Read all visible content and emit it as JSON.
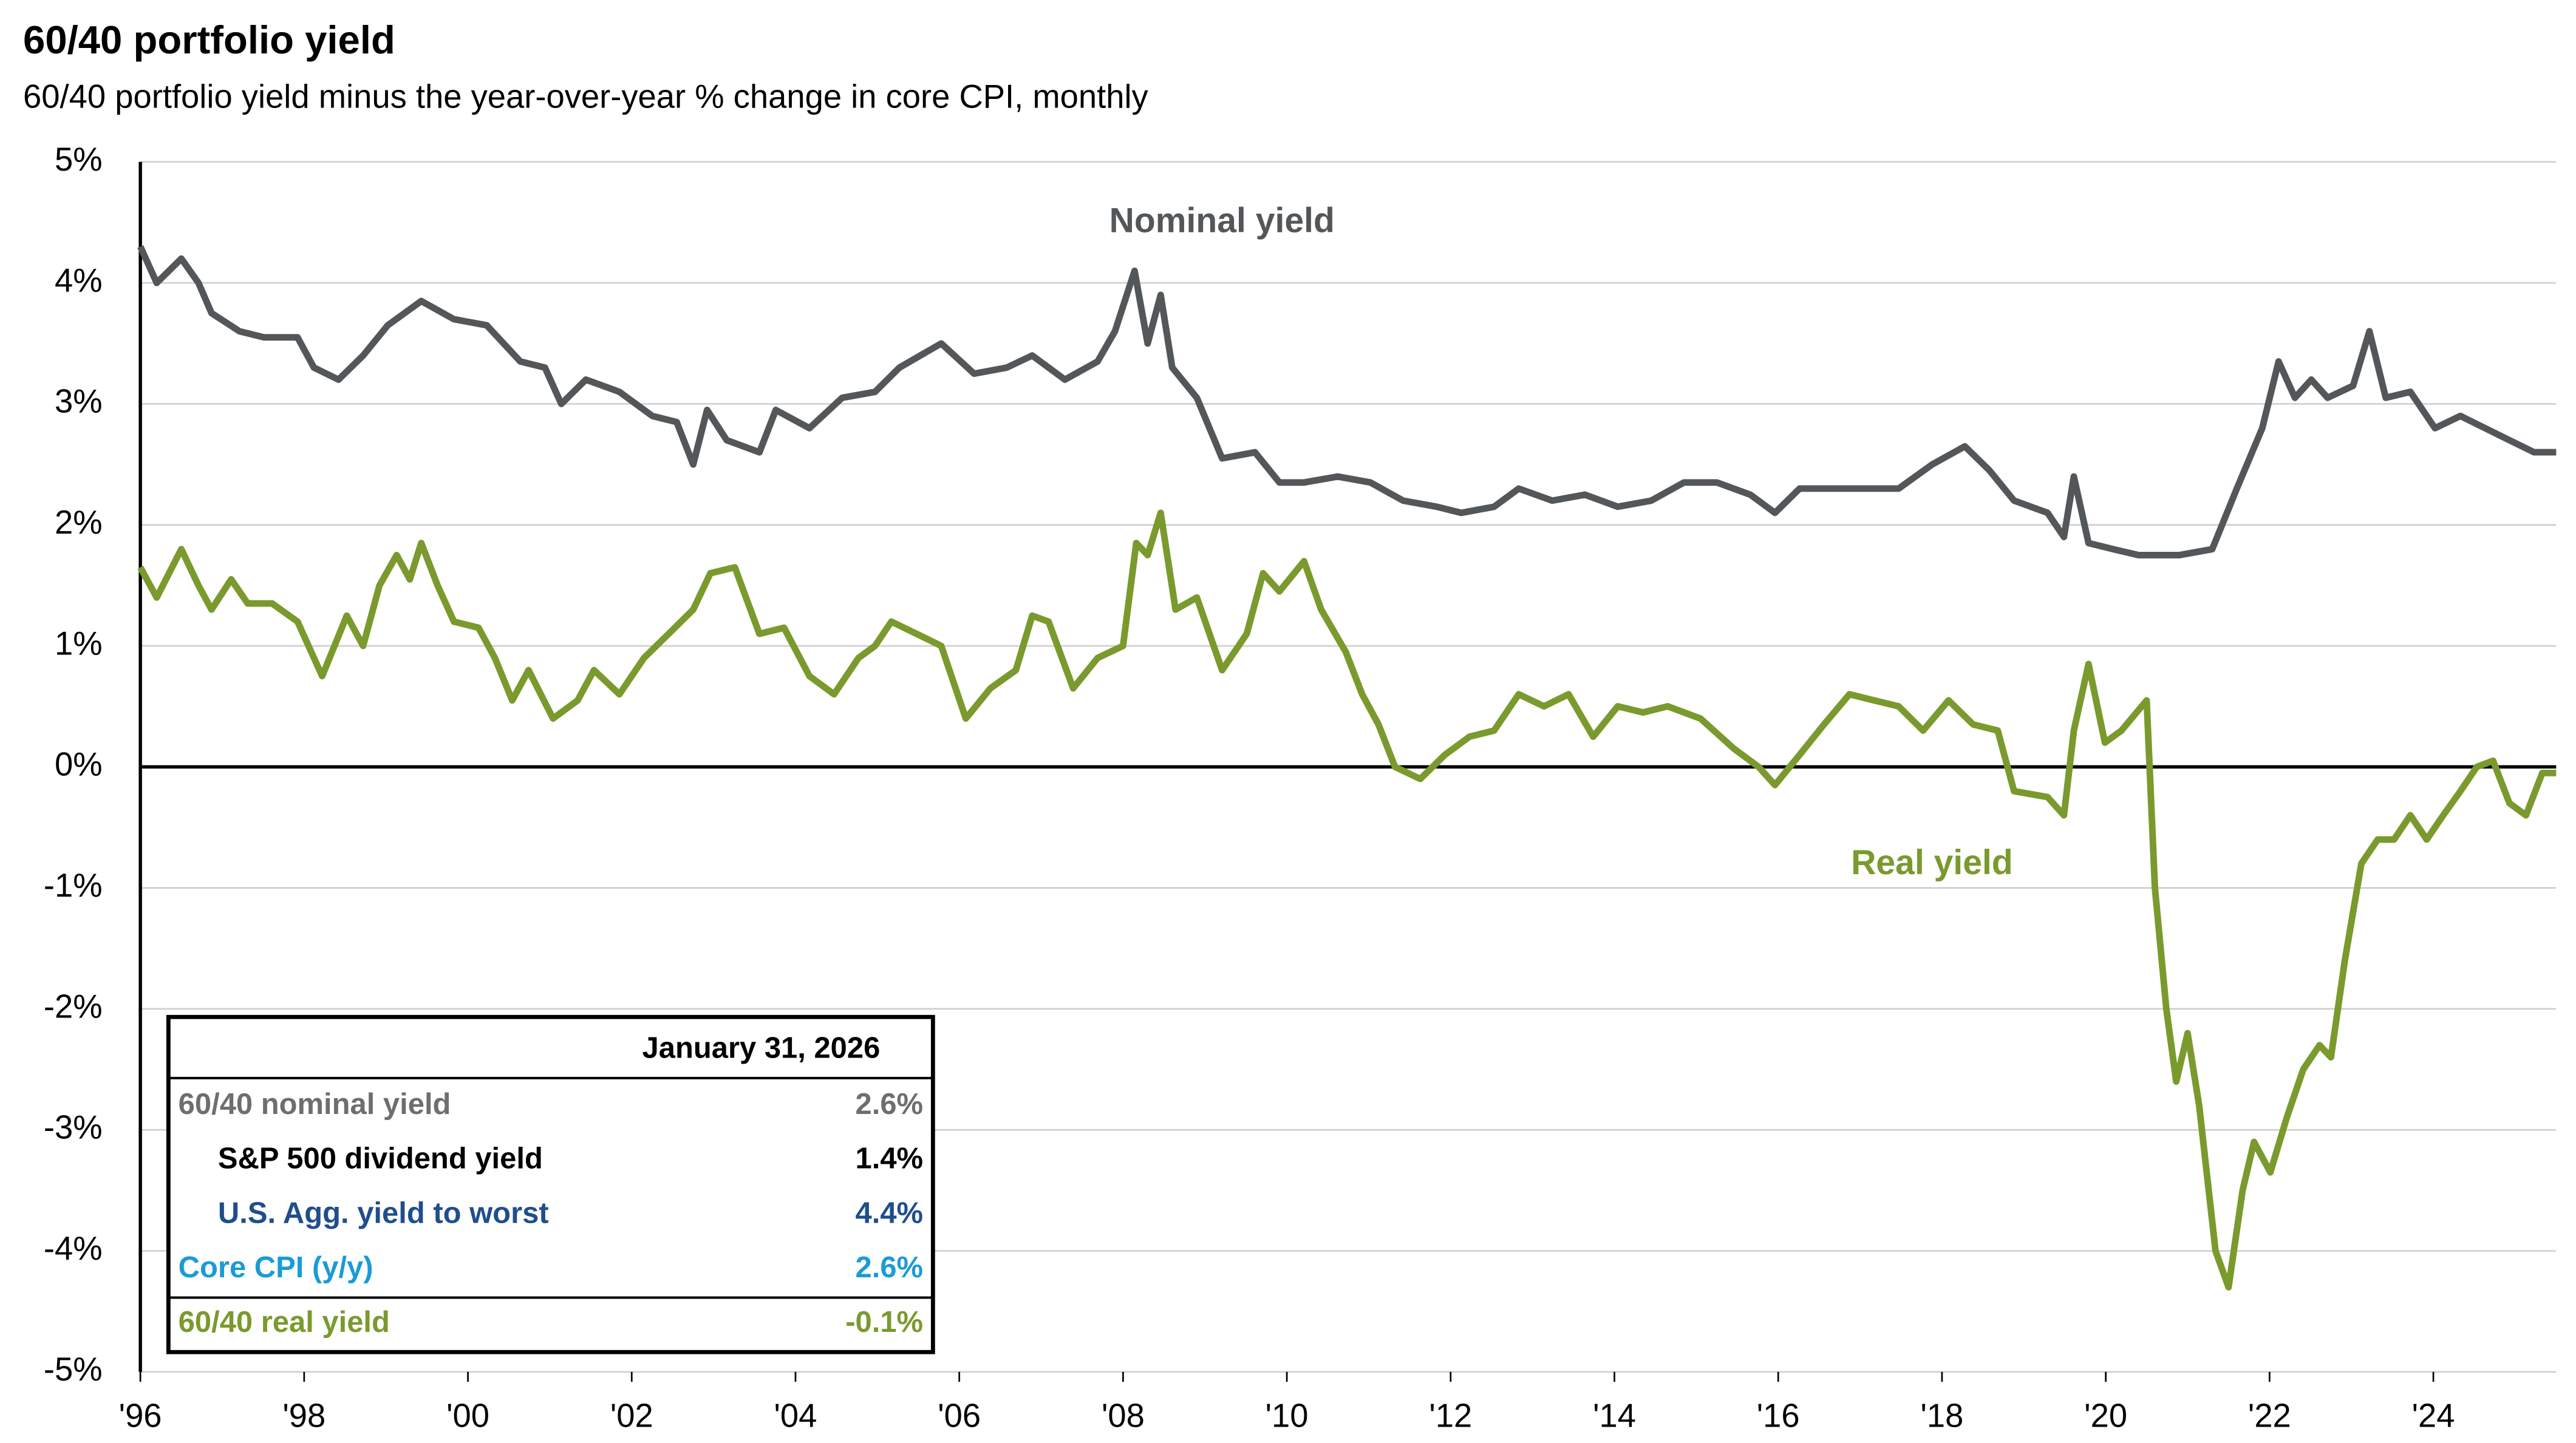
{
  "chart_data": {
    "type": "line",
    "title": "60/40 portfolio yield",
    "subtitle": "60/40 portfolio yield minus the year-over-year % change in core CPI, monthly",
    "xlim": [
      1996,
      2025.5
    ],
    "xticks": [
      {
        "value": 1996,
        "label": "'96"
      },
      {
        "value": 1998,
        "label": "'98"
      },
      {
        "value": 2000,
        "label": "'00"
      },
      {
        "value": 2002,
        "label": "'02"
      },
      {
        "value": 2004,
        "label": "'04"
      },
      {
        "value": 2006,
        "label": "'06"
      },
      {
        "value": 2008,
        "label": "'08"
      },
      {
        "value": 2010,
        "label": "'10"
      },
      {
        "value": 2012,
        "label": "'12"
      },
      {
        "value": 2014,
        "label": "'14"
      },
      {
        "value": 2016,
        "label": "'16"
      },
      {
        "value": 2018,
        "label": "'18"
      },
      {
        "value": 2020,
        "label": "'20"
      },
      {
        "value": 2022,
        "label": "'22"
      },
      {
        "value": 2024,
        "label": "'24"
      }
    ],
    "ylim": [
      -5,
      5
    ],
    "yticks": [
      {
        "value": -5,
        "label": "-5%"
      },
      {
        "value": -4,
        "label": "-4%"
      },
      {
        "value": -3,
        "label": "-3%"
      },
      {
        "value": -2,
        "label": "-2%"
      },
      {
        "value": -1,
        "label": "-1%"
      },
      {
        "value": 0,
        "label": "0%"
      },
      {
        "value": 1,
        "label": "1%"
      },
      {
        "value": 2,
        "label": "2%"
      },
      {
        "value": 3,
        "label": "3%"
      },
      {
        "value": 4,
        "label": "4%"
      },
      {
        "value": 5,
        "label": "5%"
      }
    ],
    "grid": true,
    "series": [
      {
        "name": "Nominal yield",
        "color": "#54575a",
        "x": [
          1996,
          1996.2,
          1996.5,
          1996.71,
          1996.87,
          1997.21,
          1997.51,
          1997.92,
          1998.12,
          1998.42,
          1998.72,
          1999.02,
          1999.43,
          1999.83,
          2000.23,
          2000.64,
          2000.94,
          2001.14,
          2001.44,
          2001.85,
          2002.25,
          2002.55,
          2002.75,
          2002.92,
          2003.16,
          2003.56,
          2003.76,
          2004.17,
          2004.57,
          2004.97,
          2005.27,
          2005.78,
          2006.18,
          2006.58,
          2006.89,
          2007.29,
          2007.69,
          2007.9,
          2008.14,
          2008.3,
          2008.46,
          2008.6,
          2008.9,
          2009.21,
          2009.61,
          2009.91,
          2010.21,
          2010.62,
          2011.02,
          2011.42,
          2011.83,
          2012.13,
          2012.53,
          2012.83,
          2013.24,
          2013.64,
          2014.04,
          2014.45,
          2014.85,
          2015.25,
          2015.66,
          2015.96,
          2016.26,
          2016.67,
          2017.07,
          2017.47,
          2017.88,
          2018.28,
          2018.58,
          2018.88,
          2019.29,
          2019.49,
          2019.61,
          2019.79,
          2020.09,
          2020.4,
          2020.9,
          2021.3,
          2021.6,
          2021.91,
          2022.11,
          2022.31,
          2022.51,
          2022.71,
          2023.02,
          2023.22,
          2023.42,
          2023.72,
          2024.02,
          2024.33,
          2024.63,
          2024.93,
          2025.23,
          2025.5
        ],
        "values": [
          4.3,
          4.0,
          4.2,
          4.0,
          3.75,
          3.6,
          3.55,
          3.55,
          3.3,
          3.2,
          3.4,
          3.65,
          3.85,
          3.7,
          3.65,
          3.35,
          3.3,
          3.0,
          3.2,
          3.1,
          2.9,
          2.85,
          2.5,
          2.95,
          2.7,
          2.6,
          2.95,
          2.8,
          3.05,
          3.1,
          3.3,
          3.5,
          3.25,
          3.3,
          3.4,
          3.2,
          3.35,
          3.6,
          4.1,
          3.5,
          3.9,
          3.3,
          3.05,
          2.55,
          2.6,
          2.35,
          2.35,
          2.4,
          2.35,
          2.2,
          2.15,
          2.1,
          2.15,
          2.3,
          2.2,
          2.25,
          2.15,
          2.2,
          2.35,
          2.35,
          2.25,
          2.1,
          2.3,
          2.3,
          2.3,
          2.3,
          2.5,
          2.65,
          2.45,
          2.2,
          2.1,
          1.9,
          2.4,
          1.85,
          1.8,
          1.75,
          1.75,
          1.8,
          2.3,
          2.8,
          3.35,
          3.05,
          3.2,
          3.05,
          3.15,
          3.6,
          3.05,
          3.1,
          2.8,
          2.9,
          2.8,
          2.7,
          2.6,
          2.6
        ]
      },
      {
        "name": "Real yield",
        "color": "#7a9a2e",
        "x": [
          1996,
          1996.2,
          1996.5,
          1996.71,
          1996.87,
          1997.11,
          1997.31,
          1997.61,
          1997.92,
          1998.22,
          1998.52,
          1998.72,
          1998.92,
          1999.13,
          1999.29,
          1999.43,
          1999.63,
          1999.83,
          2000.13,
          2000.33,
          2000.54,
          2000.74,
          2001.04,
          2001.34,
          2001.54,
          2001.85,
          2002.15,
          2002.45,
          2002.75,
          2002.96,
          2003.26,
          2003.56,
          2003.86,
          2004.17,
          2004.47,
          2004.77,
          2004.97,
          2005.17,
          2005.48,
          2005.78,
          2006.08,
          2006.38,
          2006.69,
          2006.89,
          2007.09,
          2007.39,
          2007.69,
          2008.0,
          2008.16,
          2008.3,
          2008.46,
          2008.64,
          2008.9,
          2009.21,
          2009.51,
          2009.71,
          2009.91,
          2010.21,
          2010.42,
          2010.72,
          2010.92,
          2011.12,
          2011.32,
          2011.63,
          2011.93,
          2012.23,
          2012.53,
          2012.83,
          2013.14,
          2013.44,
          2013.74,
          2014.04,
          2014.35,
          2014.65,
          2015.05,
          2015.46,
          2015.76,
          2015.96,
          2016.26,
          2016.56,
          2016.87,
          2017.17,
          2017.47,
          2017.77,
          2018.08,
          2018.38,
          2018.68,
          2018.88,
          2019.29,
          2019.49,
          2019.61,
          2019.79,
          2019.99,
          2020.19,
          2020.5,
          2020.6,
          2020.74,
          2020.86,
          2021.0,
          2021.14,
          2021.34,
          2021.5,
          2021.67,
          2021.81,
          2022.01,
          2022.21,
          2022.41,
          2022.61,
          2022.75,
          2022.92,
          2023.12,
          2023.32,
          2023.52,
          2023.72,
          2023.92,
          2024.12,
          2024.33,
          2024.53,
          2024.73,
          2024.93,
          2025.13,
          2025.33,
          2025.5
        ],
        "values": [
          1.65,
          1.4,
          1.8,
          1.5,
          1.3,
          1.55,
          1.35,
          1.35,
          1.2,
          0.75,
          1.25,
          1.0,
          1.5,
          1.75,
          1.55,
          1.85,
          1.5,
          1.2,
          1.15,
          0.9,
          0.55,
          0.8,
          0.4,
          0.55,
          0.8,
          0.6,
          0.9,
          1.1,
          1.3,
          1.6,
          1.65,
          1.1,
          1.15,
          0.75,
          0.6,
          0.9,
          1.0,
          1.2,
          1.1,
          1.0,
          0.4,
          0.65,
          0.8,
          1.25,
          1.2,
          0.65,
          0.9,
          1.0,
          1.85,
          1.75,
          2.1,
          1.3,
          1.4,
          0.8,
          1.1,
          1.6,
          1.45,
          1.7,
          1.3,
          0.95,
          0.6,
          0.35,
          0.0,
          -0.1,
          0.1,
          0.25,
          0.3,
          0.6,
          0.5,
          0.6,
          0.25,
          0.5,
          0.45,
          0.5,
          0.4,
          0.15,
          0.0,
          -0.15,
          0.1,
          0.35,
          0.6,
          0.55,
          0.5,
          0.3,
          0.55,
          0.35,
          0.3,
          -0.2,
          -0.25,
          -0.4,
          0.3,
          0.85,
          0.2,
          0.3,
          0.55,
          -1.0,
          -2.0,
          -2.6,
          -2.2,
          -2.8,
          -4.0,
          -4.3,
          -3.5,
          -3.1,
          -3.35,
          -2.9,
          -2.5,
          -2.3,
          -2.4,
          -1.6,
          -0.8,
          -0.6,
          -0.6,
          -0.4,
          -0.6,
          -0.4,
          -0.2,
          0.0,
          0.05,
          -0.3,
          -0.4,
          -0.05,
          -0.05
        ]
      }
    ],
    "annotations": [
      "Nominal yield",
      "Real yield"
    ],
    "table": {
      "header": "January 31, 2026",
      "rows": [
        [
          "60/40 nominal yield",
          "2.6%"
        ],
        [
          "S&P 500 dividend yield",
          "1.4%"
        ],
        [
          "U.S. Agg. yield to worst",
          "4.4%"
        ],
        [
          "Core CPI (y/y)",
          "2.6%"
        ],
        [
          "60/40 real yield",
          "-0.1%"
        ]
      ]
    }
  }
}
